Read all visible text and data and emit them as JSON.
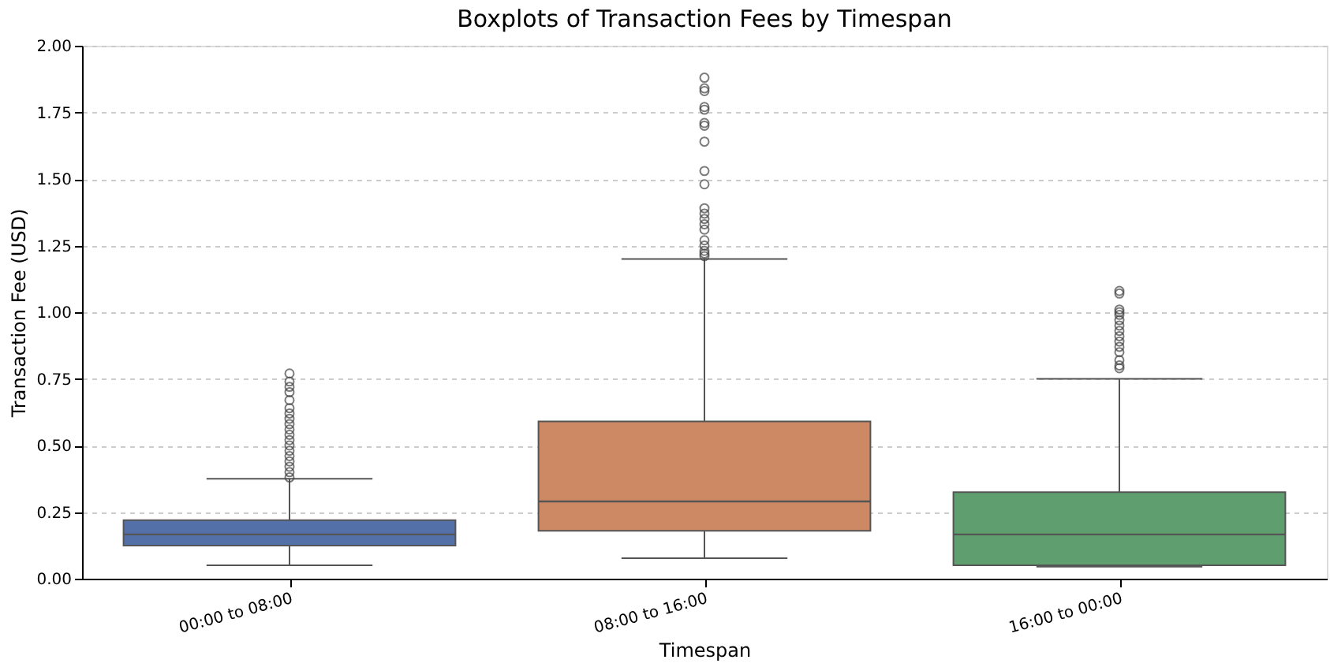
{
  "chart_data": {
    "type": "box",
    "title": "Boxplots of Transaction Fees by Timespan",
    "xlabel": "Timespan",
    "ylabel": "Transaction Fee (USD)",
    "categories": [
      "00:00 to 08:00",
      "08:00 to 16:00",
      "16:00 to 00:00"
    ],
    "colors": [
      "#5470a8",
      "#cc8963",
      "#5f9e6e"
    ],
    "boxes": [
      {
        "low": 0.05,
        "q1": 0.124,
        "median": 0.166,
        "q3": 0.22,
        "high": 0.375,
        "outliers": [
          0.38,
          0.4,
          0.42,
          0.44,
          0.46,
          0.48,
          0.5,
          0.52,
          0.54,
          0.56,
          0.58,
          0.6,
          0.62,
          0.64,
          0.67,
          0.7,
          0.72,
          0.74,
          0.77
        ]
      },
      {
        "low": 0.077,
        "q1": 0.18,
        "median": 0.29,
        "q3": 0.59,
        "high": 1.2,
        "outliers": [
          1.21,
          1.22,
          1.23,
          1.25,
          1.27,
          1.31,
          1.33,
          1.35,
          1.37,
          1.39,
          1.48,
          1.53,
          1.64,
          1.7,
          1.71,
          1.76,
          1.77,
          1.83,
          1.84,
          1.88
        ]
      },
      {
        "low": 0.045,
        "q1": 0.05,
        "median": 0.166,
        "q3": 0.325,
        "high": 0.75,
        "outliers": [
          0.79,
          0.8,
          0.82,
          0.85,
          0.87,
          0.89,
          0.91,
          0.93,
          0.95,
          0.97,
          0.99,
          1.0,
          1.01,
          1.07,
          1.08
        ]
      }
    ],
    "ylim": [
      0,
      2
    ],
    "yticks": [
      {
        "value": 0,
        "label": "0.00"
      },
      {
        "value": 0.25,
        "label": "0.25"
      },
      {
        "value": 0.5,
        "label": "0.50"
      },
      {
        "value": 0.75,
        "label": "0.75"
      },
      {
        "value": 1,
        "label": "1.00"
      },
      {
        "value": 1.25,
        "label": "1.25"
      },
      {
        "value": 1.5,
        "label": "1.50"
      },
      {
        "value": 1.75,
        "label": "1.75"
      },
      {
        "value": 2,
        "label": "2.00"
      }
    ],
    "grid": "y"
  }
}
